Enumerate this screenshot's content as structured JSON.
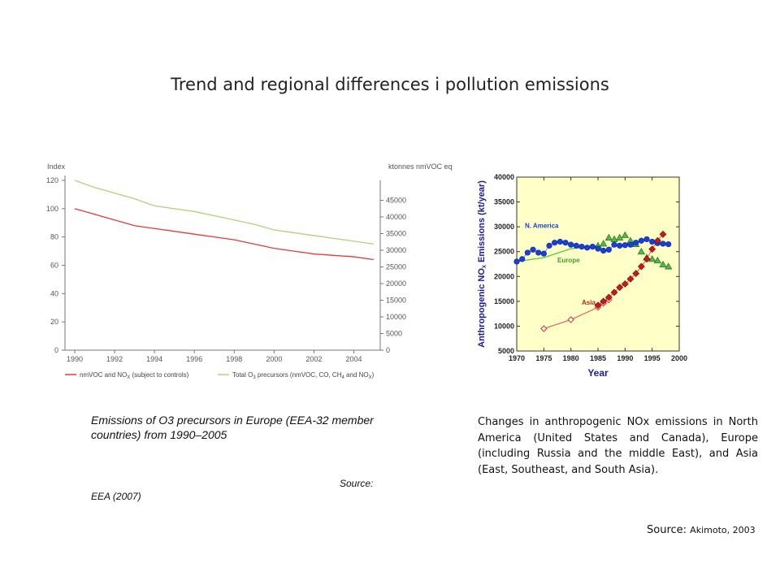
{
  "slide": {
    "title": "Trend and regional differences i pollution emissions"
  },
  "left_chart_caption": "Emissions of O3 precursors in Europe (EEA-32 member countries) from 1990–2005",
  "left_chart_source_label": "Source:",
  "left_chart_source_value": "EEA (2007)",
  "right_chart_caption": "Changes in anthropogenic NOx emissions in North America (United States and Canada), Europe (including Russia and the middle East), and Asia (East, Southeast, and South Asia).",
  "right_chart_source_label": "Source:",
  "right_chart_source_value": "Akimoto, 2003",
  "colors": {
    "red_series": "#e8393a",
    "green_series": "#b3cf7a",
    "namerica": "#1a3fd6",
    "europe_marker": "#56b847",
    "asia": "#c41a1a",
    "plot_bg": "#ffffc8",
    "title_blue": "#1a1aa0"
  },
  "chart_data": [
    {
      "type": "line",
      "title": "",
      "ylabel": "Index",
      "y2label": "ktonnes nmVOC eq",
      "x_ticks": [
        "1990",
        "1992",
        "1994",
        "1996",
        "1998",
        "2000",
        "2002",
        "2004"
      ],
      "ylim": [
        0,
        120
      ],
      "y_ticks": [
        "0",
        "20",
        "40",
        "60",
        "80",
        "100",
        "120"
      ],
      "y2lim": [
        0,
        50000
      ],
      "y2_ticks": [
        "0",
        "5000",
        "10000",
        "15000",
        "20000",
        "25000",
        "30000",
        "35000",
        "40000",
        "45000"
      ],
      "grid": false,
      "legend_position": "bottom",
      "series": [
        {
          "name": "nmVOC and NOX (subject to controls)",
          "legend": {
            "pre": "nmVOC and NO",
            "sub": "X",
            "post": " (subject to controls)"
          },
          "color": "#e8393a",
          "x": [
            1990,
            1991,
            1992,
            1993,
            1994,
            1995,
            1996,
            1997,
            1998,
            1999,
            2000,
            2001,
            2002,
            2003,
            2004,
            2005
          ],
          "values": [
            100,
            96,
            92,
            88,
            86,
            84,
            82,
            80,
            78,
            75,
            72,
            70,
            68,
            67,
            66,
            64
          ]
        },
        {
          "name": "Total O3 precursors (nmVOC, CO, CH4 and NOX)",
          "legend": {
            "pre": "Total O",
            "sub": "3",
            "mid1": " precursors (nmVOC, CO, CH",
            "sub2": "4",
            "mid2": " and NO",
            "sub3": "X",
            "post": ")"
          },
          "color": "#b3cf7a",
          "x": [
            1990,
            1991,
            1992,
            1993,
            1994,
            1995,
            1996,
            1997,
            1998,
            1999,
            2000,
            2001,
            2002,
            2003,
            2004,
            2005
          ],
          "values": [
            120,
            115,
            111,
            107,
            102,
            100,
            98,
            95,
            92,
            89,
            85,
            83,
            81,
            79,
            77,
            75
          ]
        }
      ]
    },
    {
      "type": "scatter",
      "title": "",
      "xlabel": "Year",
      "ylabel": "Anthropogenic NOX Emissions (kt/year)",
      "ylabel_parts": {
        "pre": "Anthropogenic NO",
        "sub": "X",
        "post": " Emissions (kt/year)"
      },
      "xlim": [
        1970,
        2000
      ],
      "x_ticks": [
        "1970",
        "1975",
        "1980",
        "1985",
        "1990",
        "1995",
        "2000"
      ],
      "ylim": [
        5000,
        40000
      ],
      "y_ticks": [
        "5000",
        "10000",
        "15000",
        "20000",
        "25000",
        "30000",
        "35000",
        "40000"
      ],
      "grid": false,
      "series": [
        {
          "name": "N. America",
          "marker": "circle",
          "x": [
            1970,
            1971,
            1972,
            1973,
            1974,
            1975,
            1976,
            1977,
            1978,
            1979,
            1980,
            1981,
            1982,
            1983,
            1984,
            1985,
            1986,
            1987,
            1988,
            1989,
            1990,
            1991,
            1992,
            1993,
            1994,
            1995,
            1996,
            1997,
            1998
          ],
          "values": [
            23000,
            23500,
            24800,
            25400,
            24800,
            24600,
            26200,
            26800,
            27000,
            26800,
            26400,
            26200,
            26000,
            25800,
            26000,
            25600,
            25200,
            25400,
            26400,
            26200,
            26300,
            26400,
            26800,
            27200,
            27500,
            27000,
            26700,
            26600,
            26500
          ]
        },
        {
          "name": "Europe",
          "marker": "triangle",
          "x": [
            1985,
            1986,
            1987,
            1988,
            1989,
            1990,
            1991,
            1992,
            1993,
            1994,
            1995,
            1996,
            1997,
            1998
          ],
          "values": [
            26200,
            26600,
            27800,
            27500,
            27800,
            28300,
            27200,
            26500,
            25000,
            23800,
            23500,
            23200,
            22400,
            22000
          ]
        },
        {
          "name": "Europe trend",
          "style": "line",
          "x": [
            1970,
            1975,
            1980,
            1985
          ],
          "values": [
            23000,
            23800,
            25600,
            26200
          ]
        },
        {
          "name": "Asia",
          "marker": "diamond",
          "x": [
            1985,
            1986,
            1987,
            1988,
            1989,
            1990,
            1991,
            1992,
            1993,
            1994,
            1995,
            1996,
            1997
          ],
          "values": [
            14200,
            15000,
            15800,
            16800,
            17800,
            18500,
            19500,
            20600,
            22000,
            23500,
            25500,
            27200,
            28500
          ]
        },
        {
          "name": "Asia early",
          "marker": "open-diamond",
          "x": [
            1975,
            1980,
            1985,
            1986,
            1987
          ],
          "values": [
            9500,
            11300,
            13800,
            14600,
            15300
          ]
        }
      ],
      "annotations": [
        "N. America",
        "Europe",
        "Asia"
      ]
    }
  ]
}
